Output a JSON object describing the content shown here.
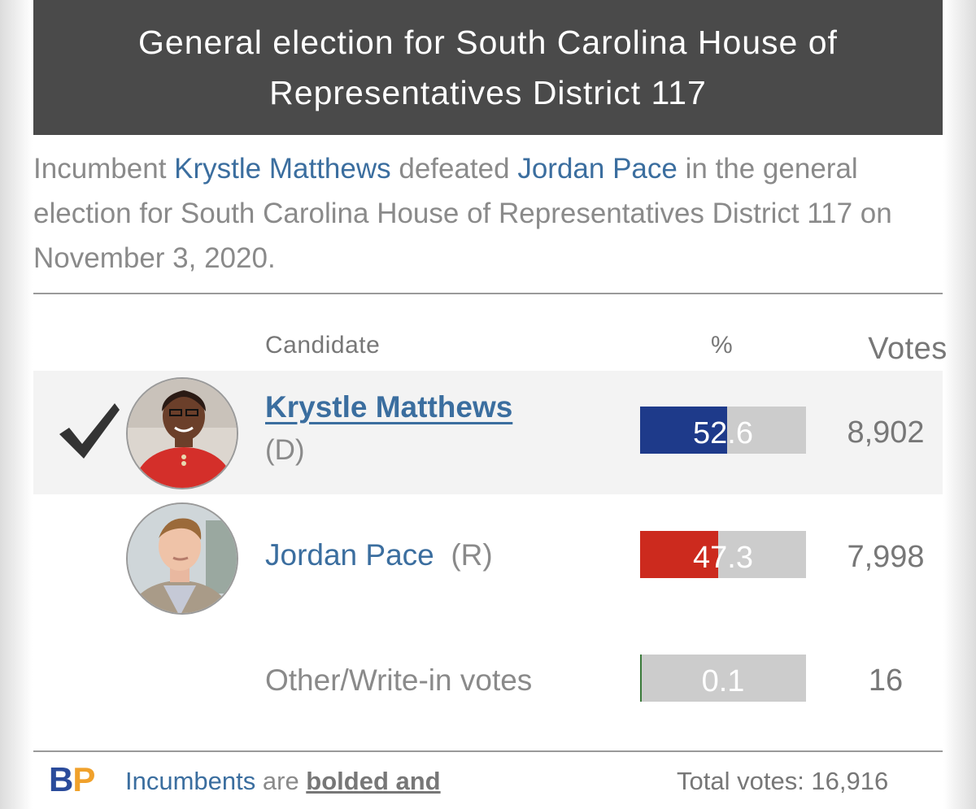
{
  "header": {
    "title": "General election for South Carolina House of Representatives District 117"
  },
  "summary": {
    "prefix": "Incumbent ",
    "winner": "Krystle Matthews",
    "middle": " defeated ",
    "loser": "Jordan Pace",
    "suffix": " in the general election for South Carolina House of Representatives District 117 on November 3, 2020."
  },
  "columns": {
    "candidate": "Candidate",
    "percent": "%",
    "votes": "Votes"
  },
  "candidates": [
    {
      "name": "Krystle Matthews",
      "party": "(D)",
      "percent": 52.6,
      "percent_label": "52.6",
      "votes": "8,902",
      "color": "#1e3a8a",
      "winner": true
    },
    {
      "name": "Jordan Pace",
      "party": "(R)",
      "percent": 47.3,
      "percent_label": "47.3",
      "votes": "7,998",
      "color": "#cc2a1e",
      "winner": false
    },
    {
      "name": "Other/Write-in votes",
      "party": "",
      "percent": 0.1,
      "percent_label": "0.1",
      "votes": "16",
      "color": "#3a7a3a",
      "winner": false
    }
  ],
  "footer": {
    "logo_b": "B",
    "logo_p": "P",
    "note_link": "Incumbents",
    "note_mid": " are ",
    "note_bold": "bolded and",
    "total": "Total votes: 16,916"
  },
  "icons": {
    "winner": "check-icon"
  }
}
